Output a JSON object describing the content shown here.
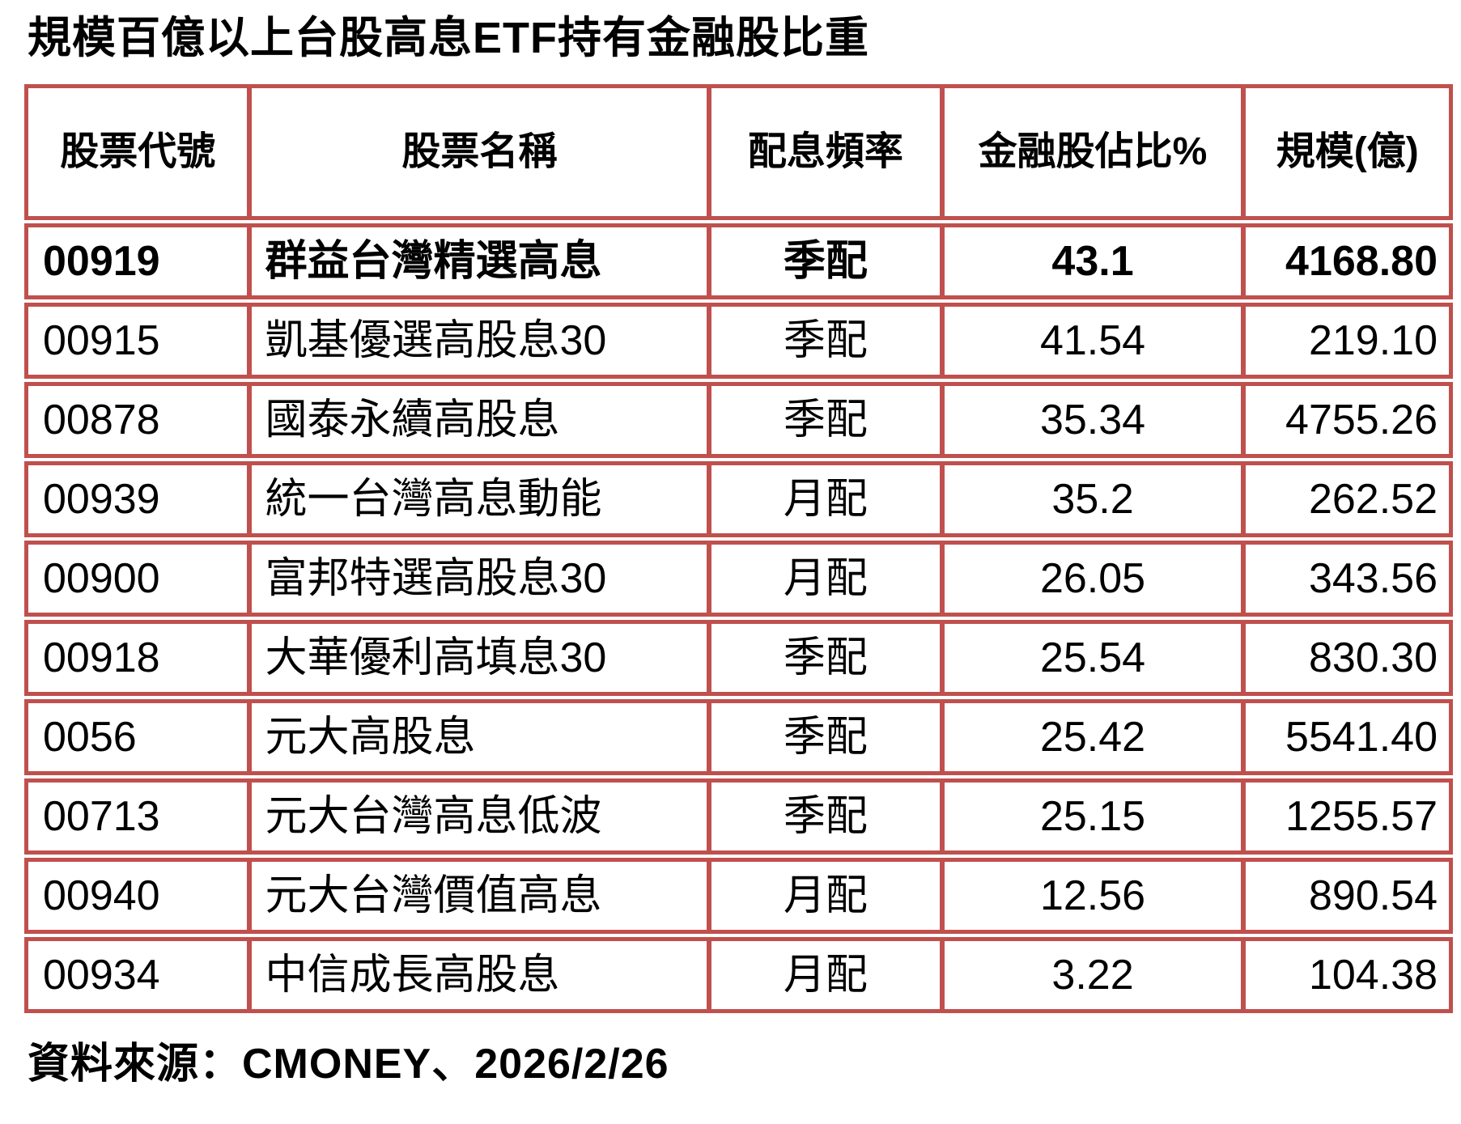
{
  "title": "規模百億以上台股高息ETF持有金融股比重",
  "table": {
    "columns": [
      "股票代號",
      "股票名稱",
      "配息頻率",
      "金融股佔比%",
      "規模(億)"
    ],
    "rows": [
      {
        "code": "00919",
        "name": "群益台灣精選高息",
        "freq": "季配",
        "pct": "43.1",
        "aum": "4168.80",
        "bold": true
      },
      {
        "code": "00915",
        "name": "凱基優選高股息30",
        "freq": "季配",
        "pct": "41.54",
        "aum": "219.10",
        "bold": false
      },
      {
        "code": "00878",
        "name": "國泰永續高股息",
        "freq": "季配",
        "pct": "35.34",
        "aum": "4755.26",
        "bold": false
      },
      {
        "code": "00939",
        "name": "統一台灣高息動能",
        "freq": "月配",
        "pct": "35.2",
        "aum": "262.52",
        "bold": false
      },
      {
        "code": "00900",
        "name": "富邦特選高股息30",
        "freq": "月配",
        "pct": "26.05",
        "aum": "343.56",
        "bold": false
      },
      {
        "code": "00918",
        "name": "大華優利高填息30",
        "freq": "季配",
        "pct": "25.54",
        "aum": "830.30",
        "bold": false
      },
      {
        "code": "0056",
        "name": "元大高股息",
        "freq": "季配",
        "pct": "25.42",
        "aum": "5541.40",
        "bold": false
      },
      {
        "code": "00713",
        "name": "元大台灣高息低波",
        "freq": "季配",
        "pct": "25.15",
        "aum": "1255.57",
        "bold": false
      },
      {
        "code": "00940",
        "name": "元大台灣價值高息",
        "freq": "月配",
        "pct": "12.56",
        "aum": "890.54",
        "bold": false
      },
      {
        "code": "00934",
        "name": "中信成長高股息",
        "freq": "月配",
        "pct": "3.22",
        "aum": "104.38",
        "bold": false
      }
    ]
  },
  "footer": {
    "source_label": "資料來源：CMONEY、2026/2/26"
  },
  "colors": {
    "border": "#C0504D",
    "text": "#000000",
    "background": "#FFFFFF"
  }
}
